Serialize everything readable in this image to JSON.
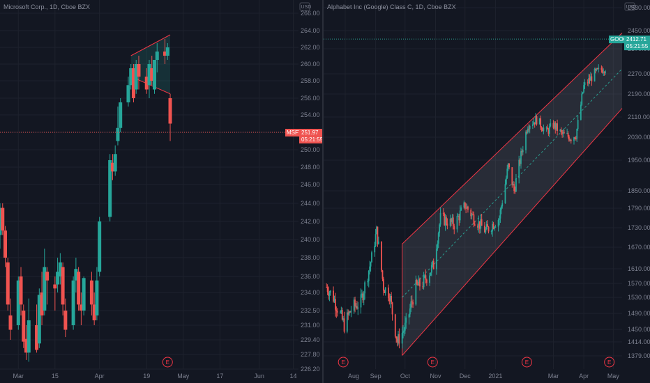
{
  "colors": {
    "up": "#26a69a",
    "down": "#ef5350",
    "bg": "#131722",
    "grid": "#1e222d",
    "text": "#7d8190",
    "channel": "#f23645",
    "channel_fill": "#787b86",
    "dotted_teal": "#2a9d8f"
  },
  "chart_data": [
    {
      "type": "candlestick",
      "title": "Microsoft Corp., 1D, Cboe BZX",
      "currency": "USD",
      "y_ticks": [
        "266.00",
        "264.00",
        "262.00",
        "260.00",
        "258.00",
        "256.00",
        "254.00",
        "252.00",
        "250.00",
        "248.00",
        "246.00",
        "244.00",
        "242.00",
        "240.00",
        "238.00",
        "236.00",
        "234.00",
        "232.50",
        "231.00",
        "229.40",
        "227.80",
        "226.20"
      ],
      "x_ticks": [
        {
          "label": "Mar",
          "x": "2021-03-01"
        },
        {
          "label": "15",
          "x": "2021-03-15"
        },
        {
          "label": "Apr",
          "x": "2021-04-01"
        },
        {
          "label": "19",
          "x": "2021-04-19"
        },
        {
          "label": "May",
          "x": "2021-05-03"
        },
        {
          "label": "17",
          "x": "2021-05-17"
        },
        {
          "label": "Jun",
          "x": "2021-06-01"
        },
        {
          "label": "14",
          "x": "2021-06-14"
        }
      ],
      "x_range": [
        "2021-02-22",
        "2021-06-16"
      ],
      "candles": [
        {
          "d": "2021-02-22",
          "o": 240.5,
          "h": 244.0,
          "l": 239.0,
          "c": 243.5
        },
        {
          "d": "2021-02-23",
          "o": 243.5,
          "h": 244.0,
          "l": 240.5,
          "c": 241.0
        },
        {
          "d": "2021-02-24",
          "o": 241.0,
          "h": 241.5,
          "l": 237.0,
          "c": 238.0
        },
        {
          "d": "2021-02-25",
          "o": 237.5,
          "h": 238.0,
          "l": 232.5,
          "c": 233.0
        },
        {
          "d": "2021-02-26",
          "o": 232.0,
          "h": 233.5,
          "l": 229.4,
          "c": 230.5
        },
        {
          "d": "2021-03-01",
          "o": 231.0,
          "h": 236.0,
          "l": 230.5,
          "c": 235.5
        },
        {
          "d": "2021-03-02",
          "o": 236.0,
          "h": 237.0,
          "l": 232.0,
          "c": 233.0
        },
        {
          "d": "2021-03-03",
          "o": 232.5,
          "h": 233.0,
          "l": 228.5,
          "c": 229.2
        },
        {
          "d": "2021-03-04",
          "o": 229.5,
          "h": 231.0,
          "l": 227.2,
          "c": 228.0
        },
        {
          "d": "2021-03-05",
          "o": 228.0,
          "h": 233.5,
          "l": 227.0,
          "c": 231.5
        },
        {
          "d": "2021-03-08",
          "o": 231.0,
          "h": 233.0,
          "l": 228.0,
          "c": 228.3
        },
        {
          "d": "2021-03-09",
          "o": 229.0,
          "h": 234.5,
          "l": 228.5,
          "c": 233.8
        },
        {
          "d": "2021-03-10",
          "o": 234.0,
          "h": 236.5,
          "l": 231.0,
          "c": 232.0
        },
        {
          "d": "2021-03-11",
          "o": 232.5,
          "h": 239.0,
          "l": 232.0,
          "c": 237.0
        },
        {
          "d": "2021-03-12",
          "o": 236.5,
          "h": 237.0,
          "l": 233.0,
          "c": 235.5
        },
        {
          "d": "2021-03-15",
          "o": 235.0,
          "h": 236.0,
          "l": 232.5,
          "c": 234.5
        },
        {
          "d": "2021-03-16",
          "o": 235.0,
          "h": 238.0,
          "l": 234.0,
          "c": 236.5
        },
        {
          "d": "2021-03-17",
          "o": 236.0,
          "h": 238.5,
          "l": 235.0,
          "c": 237.5
        },
        {
          "d": "2021-03-18",
          "o": 237.0,
          "h": 237.5,
          "l": 232.0,
          "c": 233.0
        },
        {
          "d": "2021-03-19",
          "o": 232.5,
          "h": 233.5,
          "l": 229.7,
          "c": 230.5
        },
        {
          "d": "2021-03-22",
          "o": 231.0,
          "h": 236.0,
          "l": 230.5,
          "c": 235.5
        },
        {
          "d": "2021-03-23",
          "o": 235.5,
          "h": 238.0,
          "l": 234.0,
          "c": 236.8
        },
        {
          "d": "2021-03-24",
          "o": 236.5,
          "h": 237.0,
          "l": 232.5,
          "c": 233.0
        },
        {
          "d": "2021-03-25",
          "o": 233.0,
          "h": 234.0,
          "l": 231.0,
          "c": 232.5
        },
        {
          "d": "2021-03-26",
          "o": 232.5,
          "h": 236.0,
          "l": 232.0,
          "c": 235.8
        },
        {
          "d": "2021-03-29",
          "o": 235.5,
          "h": 236.5,
          "l": 232.0,
          "c": 233.0
        },
        {
          "d": "2021-03-30",
          "o": 233.0,
          "h": 234.0,
          "l": 231.0,
          "c": 231.5
        },
        {
          "d": "2021-03-31",
          "o": 232.0,
          "h": 237.0,
          "l": 231.5,
          "c": 235.5
        },
        {
          "d": "2021-04-01",
          "o": 236.5,
          "h": 242.5,
          "l": 236.0,
          "c": 242.0
        },
        {
          "d": "2021-04-05",
          "o": 242.5,
          "h": 249.5,
          "l": 242.0,
          "c": 248.8
        },
        {
          "d": "2021-04-06",
          "o": 248.5,
          "h": 249.5,
          "l": 246.5,
          "c": 247.5
        },
        {
          "d": "2021-04-07",
          "o": 247.5,
          "h": 250.5,
          "l": 247.0,
          "c": 249.5
        },
        {
          "d": "2021-04-08",
          "o": 251.0,
          "h": 255.0,
          "l": 250.5,
          "c": 252.5
        },
        {
          "d": "2021-04-09",
          "o": 252.5,
          "h": 256.0,
          "l": 252.0,
          "c": 255.5
        },
        {
          "d": "2021-04-12",
          "o": 255.5,
          "h": 258.5,
          "l": 255.0,
          "c": 257.5
        },
        {
          "d": "2021-04-13",
          "o": 257.5,
          "h": 260.0,
          "l": 257.0,
          "c": 259.5
        },
        {
          "d": "2021-04-14",
          "o": 259.5,
          "h": 260.0,
          "l": 255.5,
          "c": 256.0
        },
        {
          "d": "2021-04-15",
          "o": 257.0,
          "h": 260.5,
          "l": 256.5,
          "c": 260.0
        },
        {
          "d": "2021-04-16",
          "o": 260.0,
          "h": 261.0,
          "l": 257.0,
          "c": 258.5
        },
        {
          "d": "2021-04-19",
          "o": 258.5,
          "h": 259.5,
          "l": 256.5,
          "c": 257.0
        },
        {
          "d": "2021-04-20",
          "o": 257.5,
          "h": 260.5,
          "l": 256.0,
          "c": 260.0
        },
        {
          "d": "2021-04-21",
          "o": 259.5,
          "h": 261.0,
          "l": 257.5,
          "c": 258.0
        },
        {
          "d": "2021-04-22",
          "o": 257.0,
          "h": 260.5,
          "l": 256.5,
          "c": 260.5
        },
        {
          "d": "2021-04-23",
          "o": 260.5,
          "h": 262.5,
          "l": 259.0,
          "c": 261.5
        },
        {
          "d": "2021-04-26",
          "o": 261.5,
          "h": 263.0,
          "l": 260.0,
          "c": 261.0
        },
        {
          "d": "2021-04-27",
          "o": 261.0,
          "h": 262.5,
          "l": 260.5,
          "c": 262.0
        },
        {
          "d": "2021-04-28",
          "o": 256.0,
          "h": 256.5,
          "l": 251.0,
          "c": 253.0
        }
      ],
      "last_price": {
        "symbol": "MSFT",
        "price": "251.97",
        "countdown": "05:21:55",
        "y": 252.0
      },
      "events": [
        {
          "label": "E",
          "x": "2021-04-27"
        }
      ],
      "pattern_triangle": [
        [
          "2021-04-13",
          261.0
        ],
        [
          "2021-04-28",
          263.5
        ],
        [
          "2021-04-28",
          256.5
        ],
        [
          "2021-04-13",
          258.5
        ]
      ]
    },
    {
      "type": "candlestick",
      "title": "Alphabet Inc (Google) Class C, 1D, Cboe BZX",
      "currency": "USD",
      "y_ticks": [
        "2450.00",
        "2370.00",
        "2270.00",
        "2190.00",
        "2110.00",
        "2030.00",
        "1950.00",
        "1850.00",
        "1790.00",
        "1730.00",
        "1670.00",
        "1610.00",
        "1570.00",
        "1530.00",
        "1490.00",
        "1450.00",
        "1414.00",
        "1379.00"
      ],
      "y_top_partial": "2530.00",
      "x_ticks": [
        {
          "label": "Aug",
          "x": "2020-08-01"
        },
        {
          "label": "Sep",
          "x": "2020-09-01"
        },
        {
          "label": "Oct",
          "x": "2020-10-01"
        },
        {
          "label": "Nov",
          "x": "2020-11-01"
        },
        {
          "label": "Dec",
          "x": "2020-12-01"
        },
        {
          "label": "2021",
          "x": "2021-01-01"
        },
        {
          "label": "Mar",
          "x": "2021-03-01"
        },
        {
          "label": "Apr",
          "x": "2021-04-01"
        },
        {
          "label": "May",
          "x": "2021-05-01"
        }
      ],
      "x_range": [
        "2020-07-10",
        "2021-05-10"
      ],
      "swing_points": [
        {
          "d": "2020-07-13",
          "v": 1560
        },
        {
          "d": "2020-07-20",
          "v": 1530
        },
        {
          "d": "2020-07-31",
          "v": 1460
        },
        {
          "d": "2020-08-07",
          "v": 1500
        },
        {
          "d": "2020-08-17",
          "v": 1520
        },
        {
          "d": "2020-08-28",
          "v": 1640
        },
        {
          "d": "2020-09-02",
          "v": 1720
        },
        {
          "d": "2020-09-09",
          "v": 1560
        },
        {
          "d": "2020-09-15",
          "v": 1540
        },
        {
          "d": "2020-09-23",
          "v": 1415
        },
        {
          "d": "2020-10-02",
          "v": 1460
        },
        {
          "d": "2020-10-12",
          "v": 1560
        },
        {
          "d": "2020-10-19",
          "v": 1570
        },
        {
          "d": "2020-10-30",
          "v": 1620
        },
        {
          "d": "2020-11-06",
          "v": 1760
        },
        {
          "d": "2020-11-20",
          "v": 1740
        },
        {
          "d": "2020-12-01",
          "v": 1800
        },
        {
          "d": "2020-12-10",
          "v": 1760
        },
        {
          "d": "2020-12-22",
          "v": 1720
        },
        {
          "d": "2021-01-05",
          "v": 1760
        },
        {
          "d": "2021-01-14",
          "v": 1930
        },
        {
          "d": "2021-01-20",
          "v": 1850
        },
        {
          "d": "2021-02-03",
          "v": 2080
        },
        {
          "d": "2021-02-12",
          "v": 2100
        },
        {
          "d": "2021-02-22",
          "v": 2050
        },
        {
          "d": "2021-03-01",
          "v": 2080
        },
        {
          "d": "2021-03-10",
          "v": 2040
        },
        {
          "d": "2021-03-19",
          "v": 2030
        },
        {
          "d": "2021-03-24",
          "v": 2040
        },
        {
          "d": "2021-04-01",
          "v": 2220
        },
        {
          "d": "2021-04-12",
          "v": 2270
        },
        {
          "d": "2021-04-20",
          "v": 2290
        },
        {
          "d": "2021-04-26",
          "v": 2300
        }
      ],
      "last_price": {
        "symbol": "GOOG",
        "price": "2412.71",
        "countdown": "05:21:55",
        "y": 2412.71
      },
      "events": [
        {
          "label": "E",
          "x": "2020-07-30"
        },
        {
          "label": "E",
          "x": "2020-10-29"
        },
        {
          "label": "E",
          "x": "2021-02-02"
        },
        {
          "label": "E",
          "x": "2021-04-27"
        }
      ],
      "channel": {
        "start": "2020-09-28",
        "end": "2021-05-10",
        "mid_start": 1530,
        "mid_end": 2290,
        "half_width": 150
      }
    }
  ]
}
